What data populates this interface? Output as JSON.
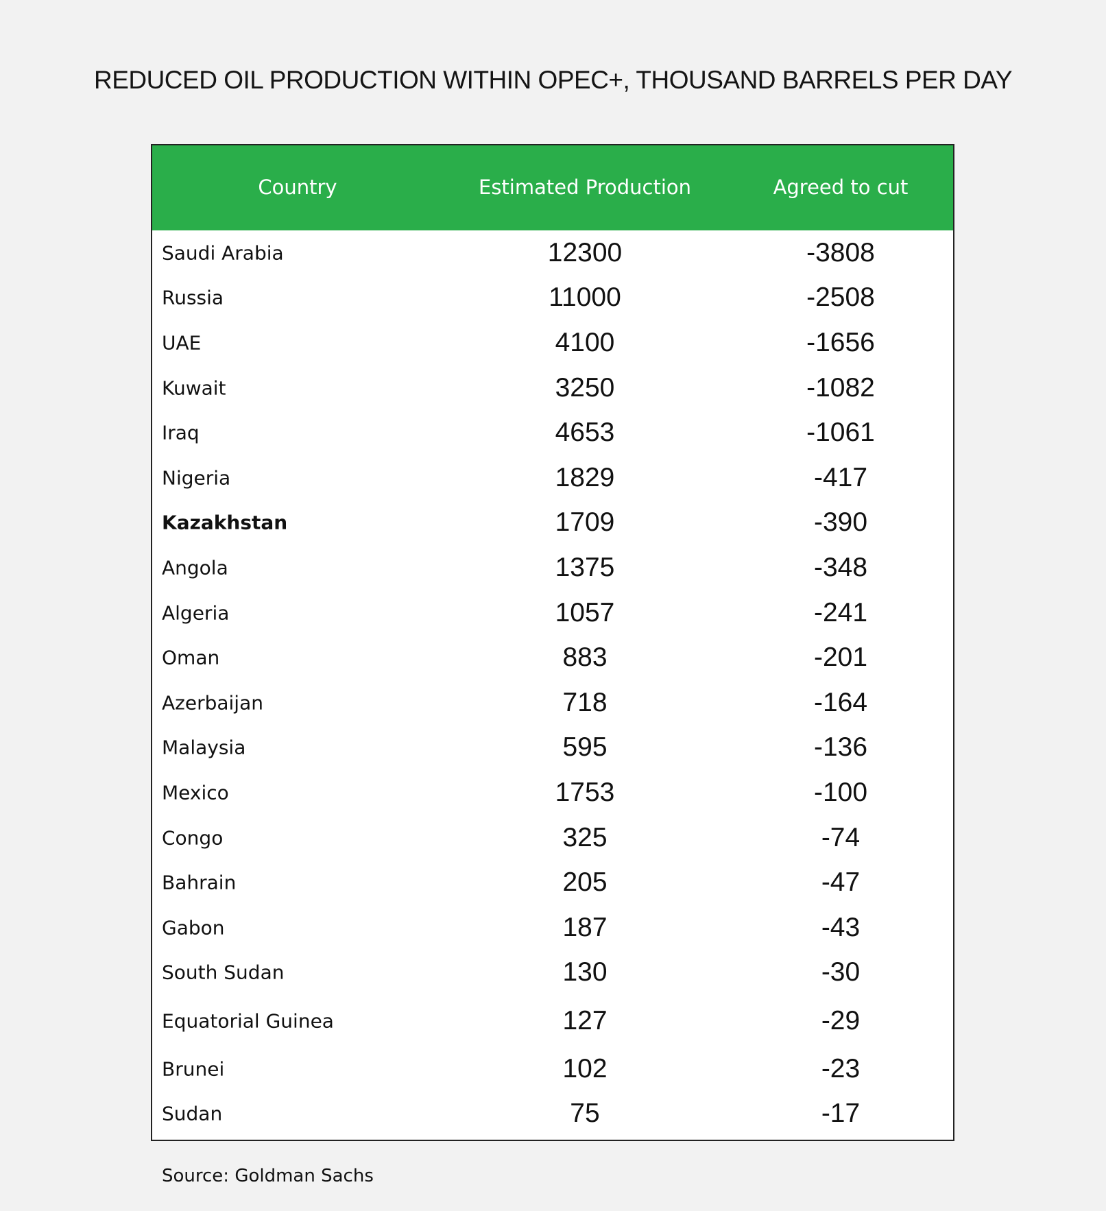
{
  "title": "REDUCED OIL PRODUCTION WITHIN OPEC+, THOUSAND BARRELS PER DAY",
  "source": "Source: Goldman Sachs",
  "colors": {
    "header_background": "#2aae4a",
    "header_text": "#ffffff",
    "page_background": "#f2f2f2"
  },
  "chart_data": {
    "type": "table",
    "title": "REDUCED OIL PRODUCTION WITHIN OPEC+, THOUSAND BARRELS PER DAY",
    "columns": [
      "Country",
      "Estimated Production",
      "Agreed to cut"
    ],
    "rows": [
      {
        "country": "Saudi Arabia",
        "production": "12300",
        "cut": "-3808"
      },
      {
        "country": "Russia",
        "production": "11000",
        "cut": "-2508"
      },
      {
        "country": "UAE",
        "production": "4100",
        "cut": "-1656"
      },
      {
        "country": "Kuwait",
        "production": "3250",
        "cut": "-1082"
      },
      {
        "country": "Iraq",
        "production": "4653",
        "cut": "-1061"
      },
      {
        "country": "Nigeria",
        "production": "1829",
        "cut": "-417"
      },
      {
        "country": "Kazakhstan",
        "production": "1709",
        "cut": "-390",
        "bold": true
      },
      {
        "country": "Angola",
        "production": "1375",
        "cut": "-348"
      },
      {
        "country": "Algeria",
        "production": "1057",
        "cut": "-241"
      },
      {
        "country": "Oman",
        "production": "883",
        "cut": "-201"
      },
      {
        "country": "Azerbaijan",
        "production": "718",
        "cut": "-164"
      },
      {
        "country": "Malaysia",
        "production": "595",
        "cut": "-136"
      },
      {
        "country": "Mexico",
        "production": "1753",
        "cut": "-100"
      },
      {
        "country": "Congo",
        "production": "325",
        "cut": "-74"
      },
      {
        "country": "Bahrain",
        "production": "205",
        "cut": "-47"
      },
      {
        "country": "Gabon",
        "production": "187",
        "cut": "-43"
      },
      {
        "country": "South Sudan",
        "production": "130",
        "cut": "-30"
      },
      {
        "country": "Equatorial Guinea",
        "production": "127",
        "cut": "-29"
      },
      {
        "country": "Brunei",
        "production": "102",
        "cut": "-23"
      },
      {
        "country": "Sudan",
        "production": "75",
        "cut": "-17"
      }
    ],
    "source": "Source: Goldman Sachs"
  }
}
